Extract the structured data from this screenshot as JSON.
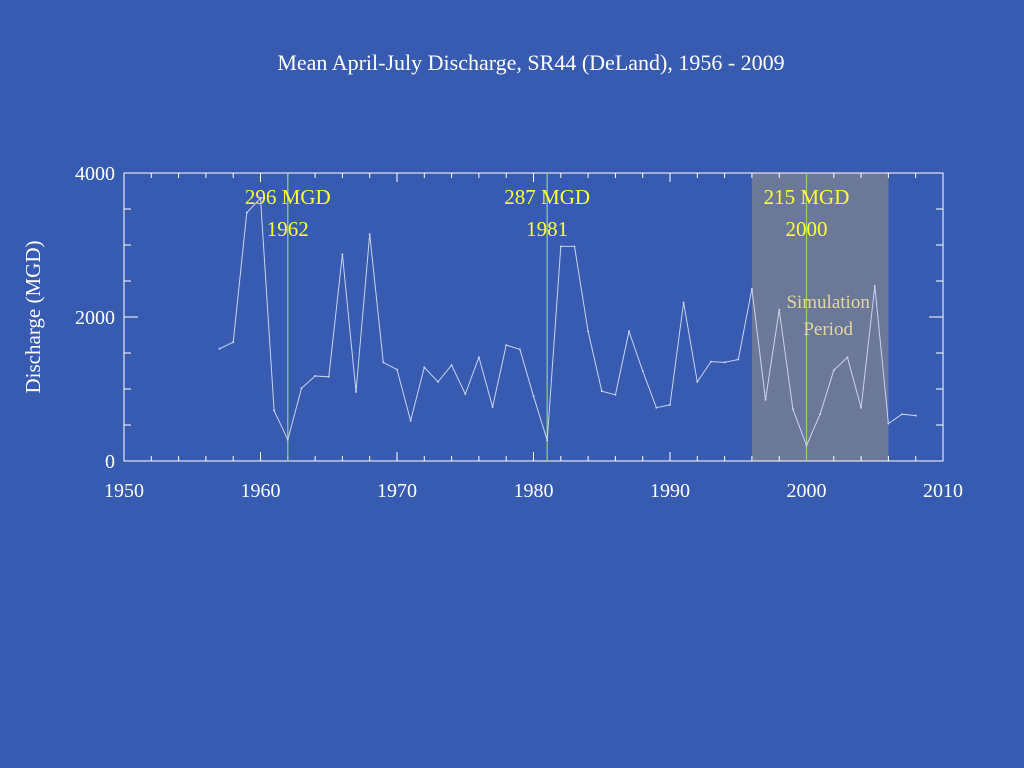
{
  "slide": {
    "title": "Mean April-July Discharge, SR44 (DeLand), 1956 - 2009"
  },
  "colors": {
    "background": "#375bb1",
    "axis": "#ffffff",
    "series_line": "#c9d3ec",
    "event_line": "#8fd66a",
    "event_label": "#ffff33",
    "shaded_band": "#6b7897",
    "band_label": "#e4d79b"
  },
  "chart_data": {
    "type": "line",
    "title": "Mean April-July Discharge, SR44 (DeLand), 1956 - 2009",
    "xlabel": "",
    "ylabel": "Discharge (MGD)",
    "xlim": [
      1950,
      2010
    ],
    "ylim": [
      0,
      4000
    ],
    "x_ticks": [
      1950,
      1960,
      1970,
      1980,
      1990,
      2000,
      2010
    ],
    "y_ticks": [
      0,
      2000,
      4000
    ],
    "grid": false,
    "series": [
      {
        "x": [
          1957,
          1958,
          1959,
          1960,
          1961,
          1962,
          1963,
          1964,
          1965,
          1966,
          1967,
          1968,
          1969,
          1970,
          1971,
          1972,
          1973,
          1974,
          1975,
          1976,
          1977,
          1978,
          1979,
          1980,
          1981,
          1982,
          1983,
          1984,
          1985,
          1986,
          1987,
          1988,
          1989,
          1990,
          1991,
          1992,
          1993,
          1994,
          1995,
          1996,
          1997,
          1998,
          1999,
          2000,
          2001,
          2002,
          2003,
          2004,
          2005,
          2006,
          2007,
          2008
        ],
        "values": [
          1560,
          1650,
          3450,
          3650,
          700,
          296,
          1010,
          1180,
          1170,
          2870,
          960,
          3150,
          1370,
          1270,
          560,
          1300,
          1100,
          1330,
          930,
          1440,
          750,
          1610,
          1550,
          900,
          287,
          2980,
          2980,
          1800,
          970,
          920,
          1800,
          1250,
          740,
          780,
          2200,
          1100,
          1380,
          1370,
          1410,
          2390,
          850,
          2100,
          720,
          215,
          650,
          1260,
          1440,
          740,
          2430,
          520,
          650,
          630
        ]
      }
    ],
    "events": [
      {
        "x": 1962,
        "label_value": "296 MGD",
        "label_year": "1962"
      },
      {
        "x": 1981,
        "label_value": "287 MGD",
        "label_year": "1981"
      },
      {
        "x": 2000,
        "label_value": "215 MGD",
        "label_year": "2000"
      }
    ],
    "shaded_region": {
      "x_start": 1996,
      "x_end": 2006,
      "label_line1": "Simulation",
      "label_line2": "Period"
    }
  }
}
